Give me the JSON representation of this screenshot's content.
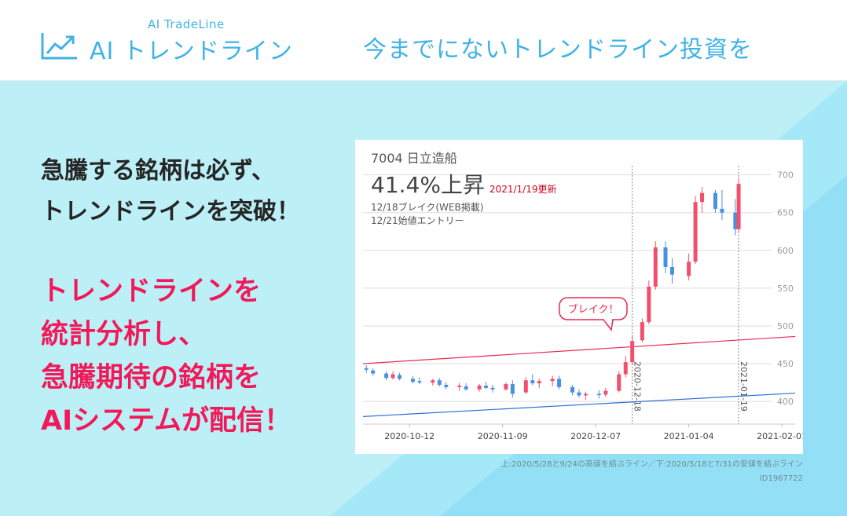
{
  "header": {
    "logo_sub": "AI TradeLine",
    "logo_main": "AI トレンドライン",
    "tagline": "今までにないトレンドライン投資を"
  },
  "lead": {
    "line1": "急騰する銘柄は必ず、",
    "line2": "トレンドラインを突破！"
  },
  "hero": {
    "line1": "トレンドラインを",
    "line2": "統計分析し、",
    "line3": "急騰期待の銘柄を",
    "line4": "AIシステムが配信！"
  },
  "chart_card": {
    "stock": "7004 日立造船",
    "rise": "41.4%上昇",
    "rise_date": "2021/1/19更新",
    "note_break": "12/18ブレイク(WEB掲載)",
    "note_entry": "12/21始値エントリー",
    "callout": "ブレイク！",
    "vline_labels": [
      "2020-12-18",
      "2021-01-19"
    ],
    "x_ticks": [
      "2020-10-12",
      "2020-11-09",
      "2020-12-07",
      "2021-01-04",
      "2021-02-01"
    ],
    "y_ticks": [
      "700",
      "650",
      "600",
      "550",
      "500",
      "450",
      "400"
    ]
  },
  "footnote": "上:2020/5/28と9/24の高値を結ぶライン／下:2020/5/18と7/31の安値を結ぶライン",
  "id_label": "ID1967722",
  "colors": {
    "brand_blue": "#3fb3e6",
    "hero_pink": "#f2195a",
    "candle_up": "#f0506e",
    "candle_down": "#4a90e2",
    "upper_line": "#e8294f",
    "lower_line": "#2a6fd6"
  },
  "chart_data": {
    "type": "candlestick",
    "x_range": [
      "2020-09-28",
      "2021-02-05"
    ],
    "ylim": [
      370,
      710
    ],
    "grid": true,
    "candles": [
      {
        "date": "2020-09-29",
        "open": 444,
        "high": 448,
        "low": 438,
        "close": 442
      },
      {
        "date": "2020-10-01",
        "open": 441,
        "high": 444,
        "low": 434,
        "close": 437
      },
      {
        "date": "2020-10-05",
        "open": 437,
        "high": 440,
        "low": 428,
        "close": 431
      },
      {
        "date": "2020-10-07",
        "open": 431,
        "high": 440,
        "low": 429,
        "close": 436
      },
      {
        "date": "2020-10-09",
        "open": 435,
        "high": 438,
        "low": 428,
        "close": 430
      },
      {
        "date": "2020-10-13",
        "open": 430,
        "high": 434,
        "low": 424,
        "close": 426
      },
      {
        "date": "2020-10-15",
        "open": 427,
        "high": 432,
        "low": 423,
        "close": 425
      },
      {
        "date": "2020-10-19",
        "open": 425,
        "high": 430,
        "low": 421,
        "close": 428
      },
      {
        "date": "2020-10-21",
        "open": 428,
        "high": 431,
        "low": 420,
        "close": 422
      },
      {
        "date": "2020-10-23",
        "open": 422,
        "high": 426,
        "low": 416,
        "close": 419
      },
      {
        "date": "2020-10-27",
        "open": 419,
        "high": 424,
        "low": 414,
        "close": 421
      },
      {
        "date": "2020-10-29",
        "open": 420,
        "high": 424,
        "low": 414,
        "close": 416
      },
      {
        "date": "2020-11-02",
        "open": 416,
        "high": 423,
        "low": 413,
        "close": 421
      },
      {
        "date": "2020-11-04",
        "open": 421,
        "high": 426,
        "low": 416,
        "close": 418
      },
      {
        "date": "2020-11-06",
        "open": 418,
        "high": 422,
        "low": 412,
        "close": 416
      },
      {
        "date": "2020-11-10",
        "open": 416,
        "high": 425,
        "low": 414,
        "close": 423
      },
      {
        "date": "2020-11-12",
        "open": 423,
        "high": 428,
        "low": 405,
        "close": 410
      },
      {
        "date": "2020-11-16",
        "open": 412,
        "high": 432,
        "low": 410,
        "close": 428
      },
      {
        "date": "2020-11-18",
        "open": 428,
        "high": 436,
        "low": 422,
        "close": 424
      },
      {
        "date": "2020-11-20",
        "open": 424,
        "high": 430,
        "low": 418,
        "close": 427
      },
      {
        "date": "2020-11-24",
        "open": 427,
        "high": 434,
        "low": 420,
        "close": 430
      },
      {
        "date": "2020-11-26",
        "open": 430,
        "high": 434,
        "low": 416,
        "close": 419
      },
      {
        "date": "2020-11-30",
        "open": 419,
        "high": 422,
        "low": 408,
        "close": 412
      },
      {
        "date": "2020-12-02",
        "open": 412,
        "high": 416,
        "low": 405,
        "close": 408
      },
      {
        "date": "2020-12-04",
        "open": 408,
        "high": 413,
        "low": 402,
        "close": 410
      },
      {
        "date": "2020-12-08",
        "open": 410,
        "high": 415,
        "low": 404,
        "close": 409
      },
      {
        "date": "2020-12-10",
        "open": 409,
        "high": 418,
        "low": 406,
        "close": 414
      },
      {
        "date": "2020-12-14",
        "open": 414,
        "high": 440,
        "low": 412,
        "close": 436
      },
      {
        "date": "2020-12-16",
        "open": 436,
        "high": 460,
        "low": 432,
        "close": 452
      },
      {
        "date": "2020-12-18",
        "open": 452,
        "high": 488,
        "low": 448,
        "close": 480
      },
      {
        "date": "2020-12-21",
        "open": 481,
        "high": 510,
        "low": 478,
        "close": 505
      },
      {
        "date": "2020-12-23",
        "open": 505,
        "high": 560,
        "low": 502,
        "close": 552
      },
      {
        "date": "2020-12-25",
        "open": 552,
        "high": 612,
        "low": 548,
        "close": 604
      },
      {
        "date": "2020-12-28",
        "open": 604,
        "high": 612,
        "low": 570,
        "close": 578
      },
      {
        "date": "2020-12-30",
        "open": 578,
        "high": 590,
        "low": 556,
        "close": 568
      },
      {
        "date": "2021-01-04",
        "open": 566,
        "high": 596,
        "low": 560,
        "close": 585
      },
      {
        "date": "2021-01-06",
        "open": 585,
        "high": 672,
        "low": 582,
        "close": 664
      },
      {
        "date": "2021-01-08",
        "open": 664,
        "high": 684,
        "low": 650,
        "close": 676
      },
      {
        "date": "2021-01-12",
        "open": 676,
        "high": 680,
        "low": 650,
        "close": 655
      },
      {
        "date": "2021-01-14",
        "open": 655,
        "high": 680,
        "low": 640,
        "close": 650
      },
      {
        "date": "2021-01-18",
        "open": 650,
        "high": 668,
        "low": 620,
        "close": 628
      },
      {
        "date": "2021-01-19",
        "open": 628,
        "high": 696,
        "low": 624,
        "close": 688
      }
    ],
    "trendlines": [
      {
        "name": "upper",
        "from": [
          "2020-09-28",
          450
        ],
        "to": [
          "2021-02-05",
          486
        ]
      },
      {
        "name": "lower",
        "from": [
          "2020-09-28",
          380
        ],
        "to": [
          "2021-02-05",
          411
        ]
      }
    ],
    "vlines": [
      "2020-12-18",
      "2021-01-19"
    ]
  }
}
